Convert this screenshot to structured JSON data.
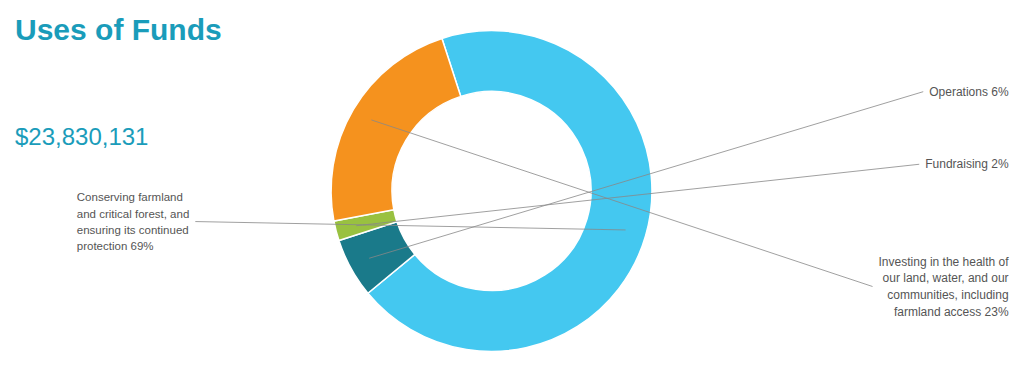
{
  "chart_data": {
    "type": "donut",
    "title": "Uses of Funds",
    "subtitle": "$23,830,131",
    "categories": [
      "Conserving farmland\nand critical forest, and\nensuring its continued\nprotection 69%",
      "Operations 6%",
      "Fundraising 2%",
      "Investing in the health of\nour land, water, and our\ncommunities, including\nfarmland access 23%"
    ],
    "values": [
      69,
      6,
      2,
      23
    ],
    "colors": [
      "#44c8f0",
      "#1a7a8a",
      "#99c140",
      "#f5921e"
    ],
    "title_color": "#1a9cba"
  }
}
